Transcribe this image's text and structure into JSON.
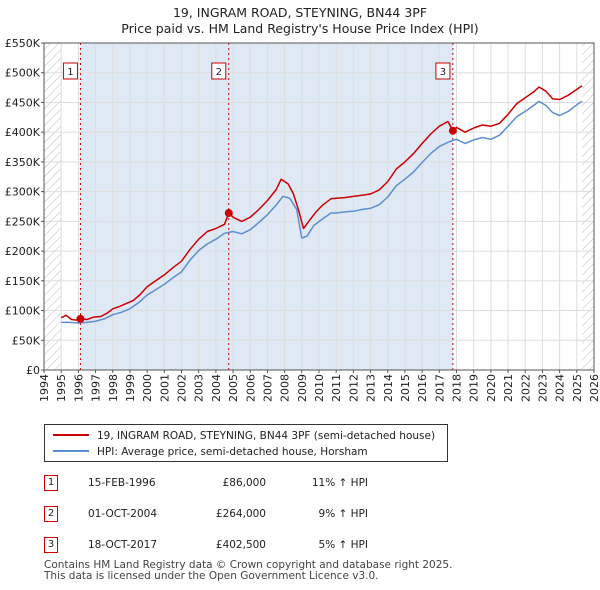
{
  "chart_data": {
    "type": "line",
    "title": "19, INGRAM ROAD, STEYNING, BN44 3PF",
    "subtitle": "Price paid vs. HM Land Registry's House Price Index (HPI)",
    "xlim": [
      1994,
      2026
    ],
    "ylim": [
      0,
      550000
    ],
    "x_ticks": [
      1994,
      1995,
      1996,
      1997,
      1998,
      1999,
      2000,
      2001,
      2002,
      2003,
      2004,
      2005,
      2006,
      2007,
      2008,
      2009,
      2010,
      2011,
      2012,
      2013,
      2014,
      2015,
      2016,
      2017,
      2018,
      2019,
      2020,
      2021,
      2022,
      2023,
      2024,
      2025,
      2026
    ],
    "y_ticks": [
      {
        "value": 0,
        "label": "£0"
      },
      {
        "value": 50000,
        "label": "£50K"
      },
      {
        "value": 100000,
        "label": "£100K"
      },
      {
        "value": 150000,
        "label": "£150K"
      },
      {
        "value": 200000,
        "label": "£200K"
      },
      {
        "value": 250000,
        "label": "£250K"
      },
      {
        "value": 300000,
        "label": "£300K"
      },
      {
        "value": 350000,
        "label": "£350K"
      },
      {
        "value": 400000,
        "label": "£400K"
      },
      {
        "value": 450000,
        "label": "£450K"
      },
      {
        "value": 500000,
        "label": "£500K"
      },
      {
        "value": 550000,
        "label": "£550K"
      }
    ],
    "grid": true,
    "data_range": [
      1995.0,
      2025.3
    ],
    "colors": {
      "property": "#cc0000",
      "hpi": "#5b8fd0",
      "shade": "#dfe9f6",
      "grid": "#dddddd",
      "hatch": "#bbbbbb"
    },
    "series": [
      {
        "name": "19, INGRAM ROAD, STEYNING, BN44 3PF (semi-detached house)",
        "color": "#cc0000",
        "points": [
          [
            1995.0,
            88000
          ],
          [
            1995.3,
            92000
          ],
          [
            1995.6,
            85000
          ],
          [
            1995.9,
            84000
          ],
          [
            1996.12,
            86000
          ],
          [
            1996.5,
            85000
          ],
          [
            1996.9,
            89000
          ],
          [
            1997.3,
            90000
          ],
          [
            1997.7,
            96000
          ],
          [
            1998.0,
            103000
          ],
          [
            1998.4,
            107000
          ],
          [
            1998.8,
            112000
          ],
          [
            1999.2,
            117000
          ],
          [
            1999.6,
            127000
          ],
          [
            2000.0,
            140000
          ],
          [
            2000.5,
            150000
          ],
          [
            2001.0,
            160000
          ],
          [
            2001.5,
            172000
          ],
          [
            2002.0,
            183000
          ],
          [
            2002.5,
            203000
          ],
          [
            2003.0,
            220000
          ],
          [
            2003.5,
            233000
          ],
          [
            2004.0,
            238000
          ],
          [
            2004.5,
            245000
          ],
          [
            2004.75,
            264000
          ],
          [
            2005.0,
            257000
          ],
          [
            2005.5,
            250000
          ],
          [
            2006.0,
            257000
          ],
          [
            2006.5,
            270000
          ],
          [
            2007.0,
            285000
          ],
          [
            2007.5,
            303000
          ],
          [
            2007.8,
            321000
          ],
          [
            2008.2,
            313000
          ],
          [
            2008.5,
            297000
          ],
          [
            2008.8,
            270000
          ],
          [
            2009.1,
            238000
          ],
          [
            2009.4,
            250000
          ],
          [
            2009.8,
            265000
          ],
          [
            2010.2,
            277000
          ],
          [
            2010.7,
            288000
          ],
          [
            2011.0,
            289000
          ],
          [
            2011.5,
            290000
          ],
          [
            2012.0,
            292000
          ],
          [
            2012.5,
            294000
          ],
          [
            2013.0,
            296000
          ],
          [
            2013.5,
            303000
          ],
          [
            2014.0,
            317000
          ],
          [
            2014.5,
            338000
          ],
          [
            2015.0,
            350000
          ],
          [
            2015.5,
            364000
          ],
          [
            2016.0,
            381000
          ],
          [
            2016.5,
            397000
          ],
          [
            2017.0,
            410000
          ],
          [
            2017.5,
            418000
          ],
          [
            2017.79,
            402500
          ],
          [
            2018.0,
            408000
          ],
          [
            2018.5,
            400000
          ],
          [
            2019.0,
            407000
          ],
          [
            2019.5,
            412000
          ],
          [
            2020.0,
            410000
          ],
          [
            2020.5,
            415000
          ],
          [
            2021.0,
            430000
          ],
          [
            2021.5,
            448000
          ],
          [
            2022.0,
            458000
          ],
          [
            2022.5,
            468000
          ],
          [
            2022.8,
            476000
          ],
          [
            2023.2,
            469000
          ],
          [
            2023.6,
            456000
          ],
          [
            2024.0,
            455000
          ],
          [
            2024.5,
            462000
          ],
          [
            2025.0,
            472000
          ],
          [
            2025.3,
            478000
          ]
        ]
      },
      {
        "name": "HPI: Average price, semi-detached house, Horsham",
        "color": "#5b8fd0",
        "points": [
          [
            1995.0,
            80000
          ],
          [
            1995.5,
            80000
          ],
          [
            1996.0,
            79000
          ],
          [
            1996.5,
            80000
          ],
          [
            1997.0,
            82000
          ],
          [
            1997.5,
            86000
          ],
          [
            1998.0,
            93000
          ],
          [
            1998.5,
            97000
          ],
          [
            1999.0,
            103000
          ],
          [
            1999.5,
            113000
          ],
          [
            2000.0,
            126000
          ],
          [
            2000.5,
            135000
          ],
          [
            2001.0,
            144000
          ],
          [
            2001.5,
            155000
          ],
          [
            2002.0,
            165000
          ],
          [
            2002.5,
            185000
          ],
          [
            2003.0,
            201000
          ],
          [
            2003.5,
            212000
          ],
          [
            2004.0,
            220000
          ],
          [
            2004.5,
            230000
          ],
          [
            2005.0,
            233000
          ],
          [
            2005.5,
            229000
          ],
          [
            2006.0,
            236000
          ],
          [
            2006.5,
            248000
          ],
          [
            2007.0,
            261000
          ],
          [
            2007.5,
            277000
          ],
          [
            2007.9,
            292000
          ],
          [
            2008.3,
            289000
          ],
          [
            2008.7,
            270000
          ],
          [
            2009.0,
            222000
          ],
          [
            2009.3,
            225000
          ],
          [
            2009.7,
            243000
          ],
          [
            2010.2,
            254000
          ],
          [
            2010.7,
            264000
          ],
          [
            2011.0,
            264000
          ],
          [
            2011.5,
            266000
          ],
          [
            2012.0,
            267000
          ],
          [
            2012.5,
            270000
          ],
          [
            2013.0,
            272000
          ],
          [
            2013.5,
            278000
          ],
          [
            2014.0,
            291000
          ],
          [
            2014.5,
            310000
          ],
          [
            2015.0,
            321000
          ],
          [
            2015.5,
            333000
          ],
          [
            2016.0,
            349000
          ],
          [
            2016.5,
            364000
          ],
          [
            2017.0,
            376000
          ],
          [
            2017.5,
            383000
          ],
          [
            2018.0,
            388000
          ],
          [
            2018.5,
            381000
          ],
          [
            2019.0,
            387000
          ],
          [
            2019.5,
            391000
          ],
          [
            2020.0,
            388000
          ],
          [
            2020.5,
            395000
          ],
          [
            2021.0,
            410000
          ],
          [
            2021.5,
            426000
          ],
          [
            2022.0,
            435000
          ],
          [
            2022.5,
            445000
          ],
          [
            2022.8,
            452000
          ],
          [
            2023.2,
            445000
          ],
          [
            2023.6,
            433000
          ],
          [
            2024.0,
            428000
          ],
          [
            2024.5,
            435000
          ],
          [
            2025.0,
            446000
          ],
          [
            2025.3,
            452000
          ]
        ]
      }
    ],
    "markers": [
      {
        "label": "1",
        "x": 1996.12,
        "y": 86000
      },
      {
        "label": "2",
        "x": 2004.75,
        "y": 264000
      },
      {
        "label": "3",
        "x": 2017.79,
        "y": 402500
      }
    ],
    "legend_position": "below"
  },
  "transactions": [
    {
      "label": "1",
      "date": "15-FEB-1996",
      "price": "£86,000",
      "hpi": "11% ↑ HPI"
    },
    {
      "label": "2",
      "date": "01-OCT-2004",
      "price": "£264,000",
      "hpi": "9% ↑ HPI"
    },
    {
      "label": "3",
      "date": "18-OCT-2017",
      "price": "£402,500",
      "hpi": "5% ↑ HPI"
    }
  ],
  "footer": {
    "line1": "Contains HM Land Registry data © Crown copyright and database right 2025.",
    "line2": "This data is licensed under the Open Government Licence v3.0."
  }
}
